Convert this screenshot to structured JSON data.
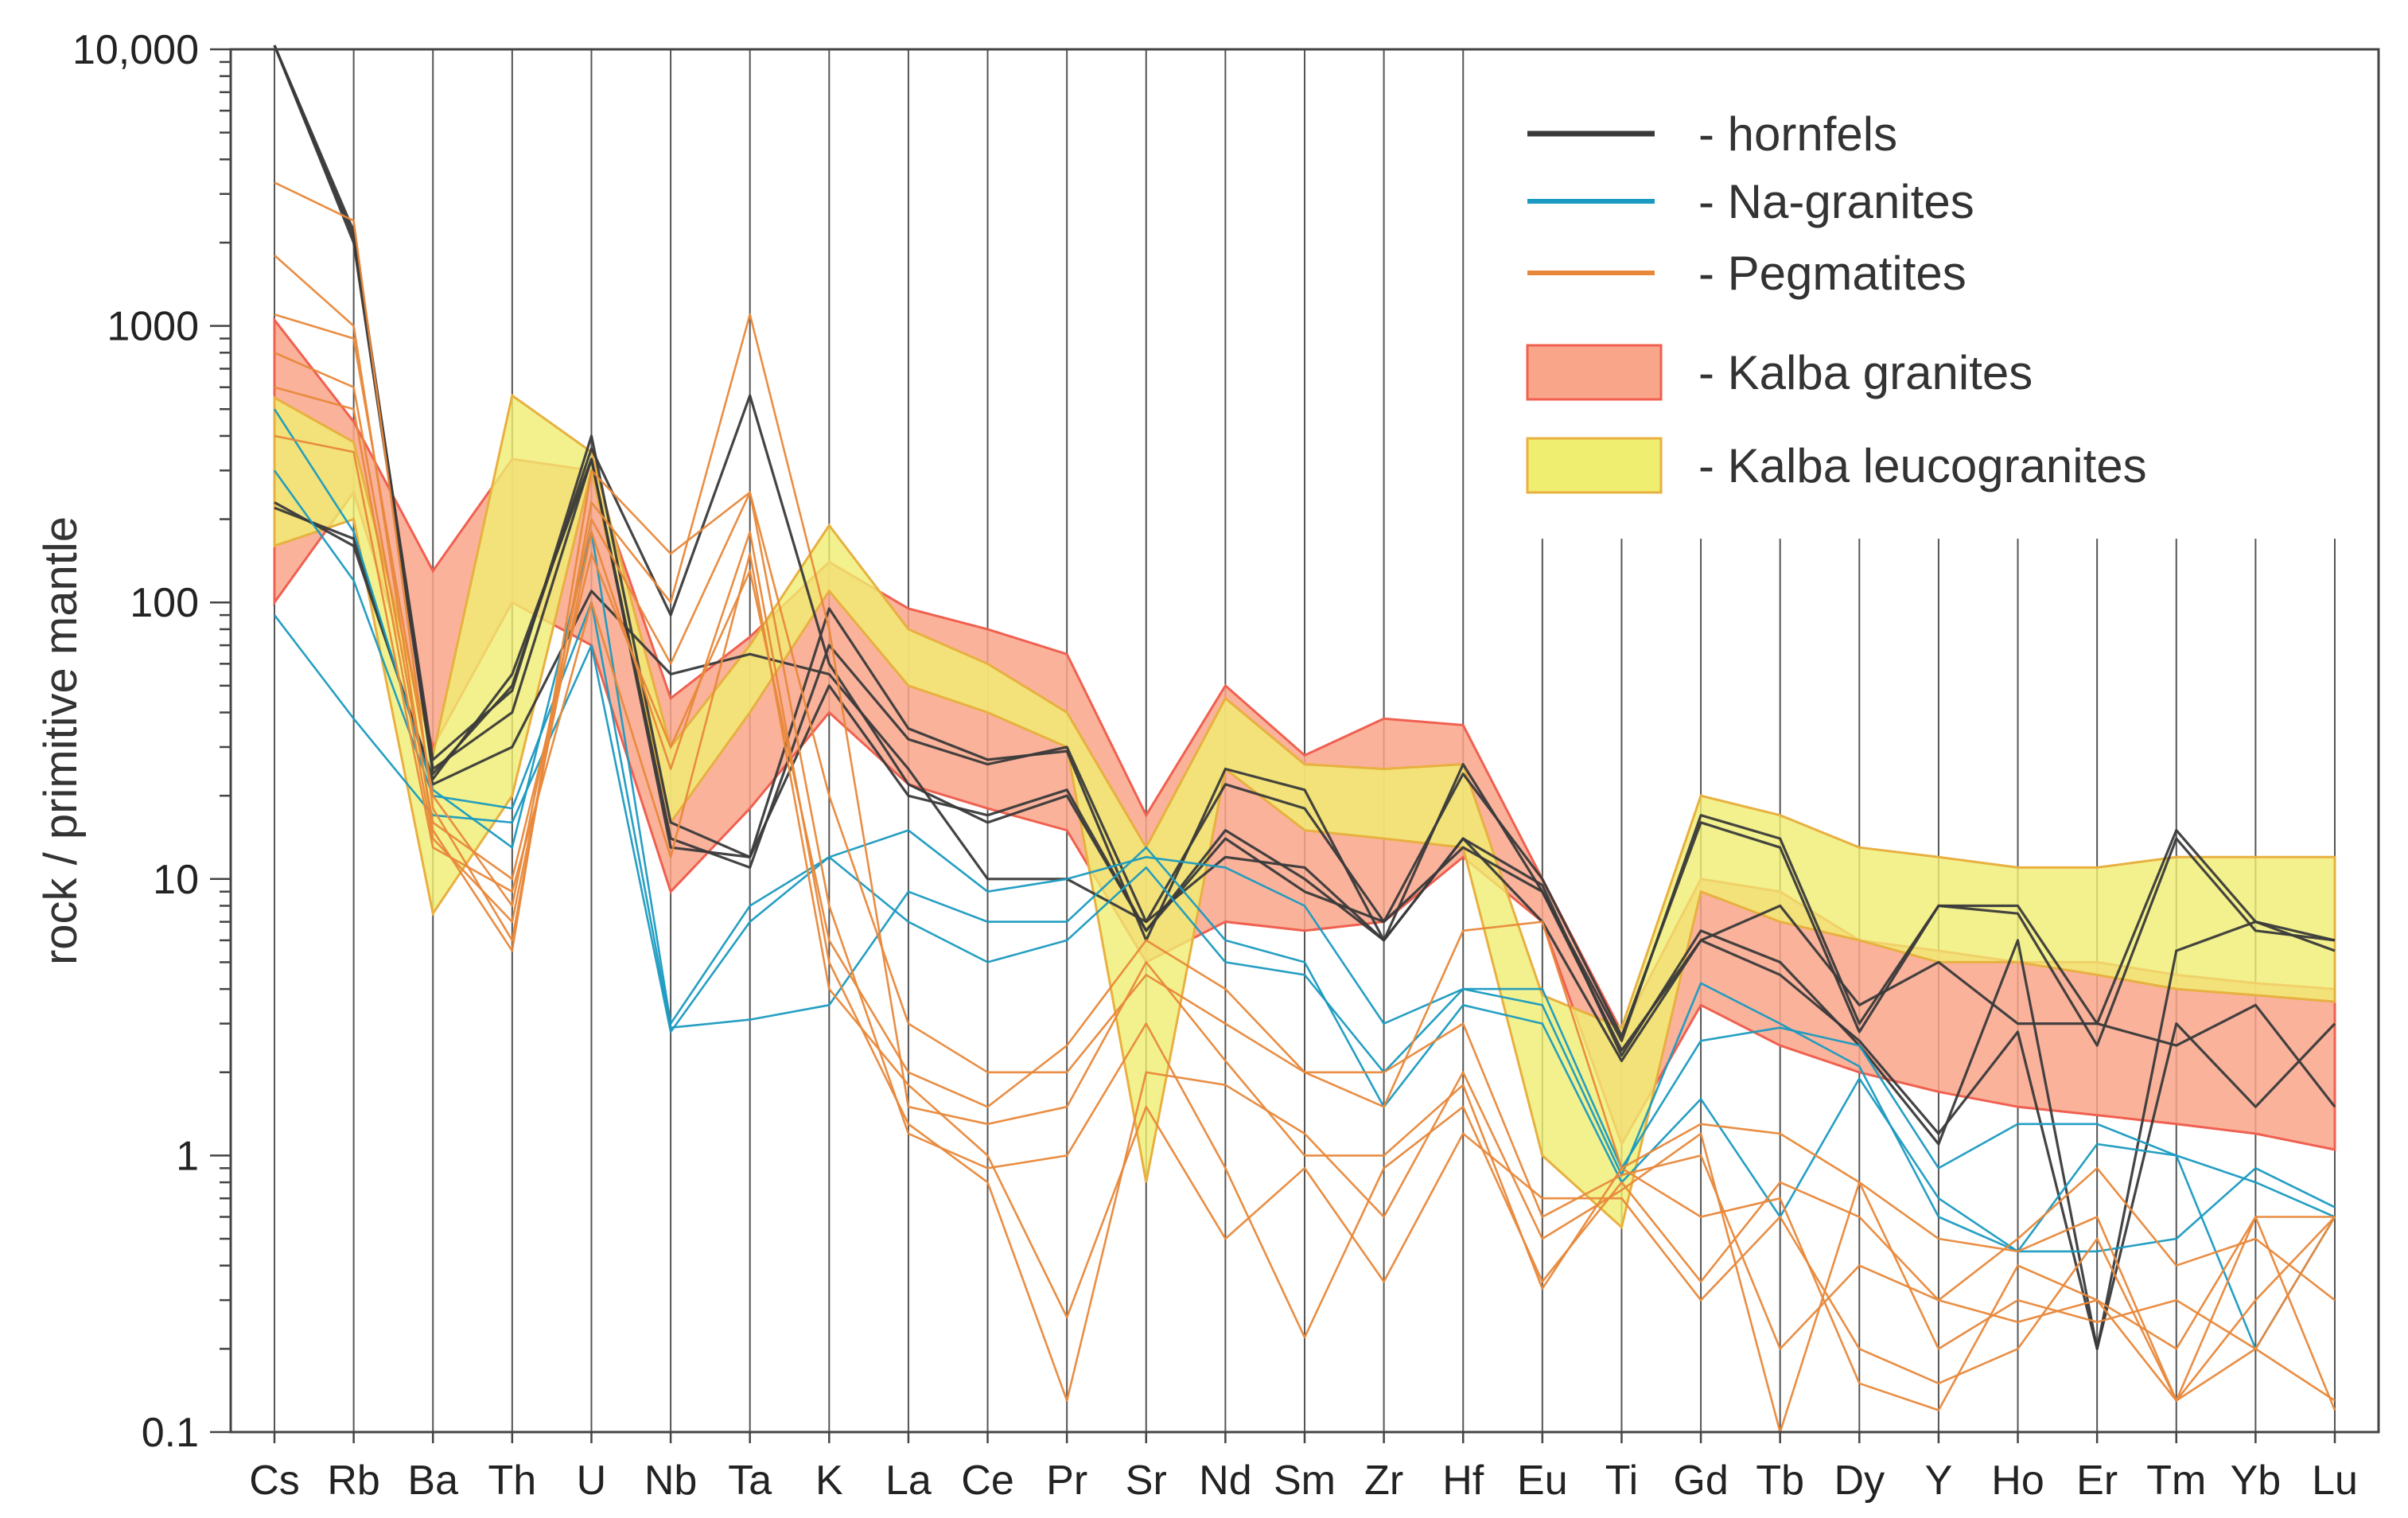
{
  "chart_data": {
    "type": "line",
    "title": "",
    "xlabel": "",
    "ylabel": "rock / primitive mantle",
    "yscale": "log",
    "ylim": [
      0.1,
      10000
    ],
    "y_tick_labels": [
      "0.1",
      "1",
      "10",
      "100",
      "1000",
      "10,000"
    ],
    "y_tick_values": [
      0.1,
      1,
      10,
      100,
      1000,
      10000
    ],
    "grid": "vertical lines at each element",
    "legend_position": "top-right",
    "categories": [
      "Cs",
      "Rb",
      "Ba",
      "Th",
      "U",
      "Nb",
      "Ta",
      "K",
      "La",
      "Ce",
      "Pr",
      "Sr",
      "Nd",
      "Sm",
      "Zr",
      "Hf",
      "Eu",
      "Ti",
      "Gd",
      "Tb",
      "Dy",
      "Y",
      "Ho",
      "Er",
      "Tm",
      "Yb",
      "Lu"
    ],
    "legend": [
      {
        "label": "- hornfels",
        "symbol": "line",
        "color": "#3a3a3a"
      },
      {
        "label": "- Na-granites",
        "symbol": "line",
        "color": "#1a9ac0"
      },
      {
        "label": "- Pegmatites",
        "symbol": "line",
        "color": "#e8883a"
      },
      {
        "label": "- Kalba granites",
        "symbol": "band",
        "color": "#f9a58a",
        "stroke": "#f06050"
      },
      {
        "label": "- Kalba leucogranites",
        "symbol": "band",
        "color": "#f0ee70",
        "stroke": "#e8b040"
      }
    ],
    "bands": [
      {
        "name": "Kalba granites",
        "color": "#f9a58a",
        "stroke": "#f06050",
        "upper": [
          1050,
          450,
          130,
          330,
          300,
          45,
          75,
          140,
          95,
          80,
          65,
          17,
          50,
          28,
          38,
          36,
          10,
          2.8,
          10,
          9,
          6,
          5.5,
          5,
          5,
          4.5,
          4.2,
          4
        ],
        "lower": [
          100,
          250,
          30,
          100,
          70,
          9,
          18,
          40,
          22,
          18,
          15,
          5,
          7,
          6.5,
          7,
          12,
          7,
          1.1,
          3.5,
          2.5,
          2,
          1.7,
          1.5,
          1.4,
          1.3,
          1.2,
          1.05
        ]
      },
      {
        "name": "Kalba leucogranites",
        "color": "#f0ee70",
        "stroke": "#e8b040",
        "upper": [
          550,
          380,
          28,
          560,
          350,
          30,
          70,
          190,
          80,
          60,
          40,
          13,
          45,
          26,
          25,
          26,
          3.8,
          2.9,
          20,
          17,
          13,
          12,
          11,
          11,
          12,
          12,
          12
        ],
        "lower": [
          160,
          200,
          7.5,
          20,
          300,
          16,
          40,
          110,
          50,
          40,
          30,
          0.8,
          25,
          15,
          14,
          13,
          1.0,
          0.55,
          9,
          7,
          6,
          5,
          5,
          4.5,
          4,
          3.8,
          3.6
        ]
      }
    ],
    "series": [
      {
        "group": "hornfels",
        "color": "#3a3a3a",
        "values": [
          12000,
          2100,
          27,
          48,
          400,
          16,
          12,
          95,
          35,
          27,
          29,
          6,
          25,
          21,
          6,
          26,
          9,
          2.6,
          17,
          14,
          3,
          8,
          8,
          3,
          15,
          7,
          6
        ]
      },
      {
        "group": "hornfels",
        "color": "#3a3a3a",
        "values": [
          11500,
          2200,
          25,
          40,
          330,
          14,
          11,
          70,
          32,
          26,
          30,
          7,
          22,
          18,
          7,
          24,
          10,
          2.7,
          16,
          13,
          2.8,
          8,
          7.5,
          2.5,
          14,
          6.5,
          6
        ]
      },
      {
        "group": "hornfels",
        "color": "#3a3a3a",
        "values": [
          10500,
          2000,
          24,
          50,
          360,
          90,
          560,
          60,
          22,
          16,
          20,
          6.5,
          15,
          10,
          6,
          14,
          9.5,
          2.3,
          6.5,
          5,
          2.5,
          1.1,
          6,
          0.2,
          5.5,
          7,
          5.5
        ]
      },
      {
        "group": "hornfels",
        "color": "#3a3a3a",
        "values": [
          230,
          160,
          23,
          55,
          330,
          13,
          12,
          50,
          20,
          17,
          21,
          6.5,
          14,
          9,
          7,
          13,
          9,
          2.4,
          6,
          4.5,
          2.6,
          1.2,
          2.8,
          0.2,
          3,
          1.5,
          3
        ]
      },
      {
        "group": "hornfels",
        "color": "#3a3a3a",
        "values": [
          220,
          170,
          22,
          30,
          110,
          55,
          65,
          55,
          25,
          10,
          10,
          7,
          12,
          11,
          6,
          14,
          7,
          2.2,
          6,
          8,
          3.5,
          5,
          3,
          3,
          2.5,
          3.5,
          1.5
        ]
      },
      {
        "group": "Na-granites",
        "color": "#1a9ac0",
        "values": [
          500,
          180,
          21,
          13,
          180,
          3,
          8,
          12,
          15,
          9,
          10,
          12,
          11,
          8,
          3,
          4,
          4,
          0.9,
          2.6,
          2.9,
          2.5,
          0.9,
          1.3,
          1.3,
          1,
          0.2,
          0.6
        ]
      },
      {
        "group": "Na-granites",
        "color": "#1a9ac0",
        "values": [
          300,
          120,
          20,
          18,
          100,
          2.9,
          3.1,
          3.5,
          9,
          7,
          7,
          13,
          6,
          5,
          1.5,
          3.5,
          3,
          0.8,
          1.6,
          0.6,
          1.9,
          0.7,
          0.45,
          0.45,
          0.5,
          0.9,
          0.65
        ]
      },
      {
        "group": "Na-granites",
        "color": "#1a9ac0",
        "values": [
          90,
          38,
          17,
          16,
          70,
          2.8,
          7,
          12,
          7,
          5,
          6,
          11,
          5,
          4.5,
          2,
          4,
          3.5,
          0.85,
          4.2,
          3,
          2.1,
          0.6,
          0.45,
          1.1,
          1,
          0.8,
          0.6
        ]
      },
      {
        "group": "Pegmatites",
        "color": "#e8883a",
        "values": [
          3300,
          2400,
          18,
          6,
          230,
          100,
          1100,
          80,
          1.5,
          1.3,
          1.5,
          5,
          2.2,
          1,
          1,
          1.8,
          0.33,
          0.9,
          1.3,
          1.2,
          0.8,
          0.5,
          0.45,
          0.6,
          0.13,
          0.6,
          0.6
        ]
      },
      {
        "group": "Pegmatites",
        "color": "#e8883a",
        "values": [
          1800,
          1000,
          15,
          5.5,
          300,
          150,
          250,
          20,
          3,
          2,
          2,
          4.5,
          3,
          2,
          2,
          3,
          0.6,
          0.85,
          1,
          0.2,
          0.4,
          0.3,
          0.25,
          0.3,
          0.13,
          0.2,
          0.13
        ]
      },
      {
        "group": "Pegmatites",
        "color": "#e8883a",
        "values": [
          1100,
          900,
          20,
          8,
          200,
          60,
          250,
          8,
          1.2,
          0.9,
          1.0,
          3,
          0.9,
          0.22,
          0.9,
          1.5,
          0.35,
          0.8,
          0.35,
          0.8,
          0.6,
          0.3,
          0.5,
          0.9,
          0.4,
          0.5,
          0.3
        ]
      },
      {
        "group": "Pegmatites",
        "color": "#e8883a",
        "values": [
          800,
          600,
          16,
          10,
          150,
          30,
          130,
          6,
          2,
          1.5,
          2.5,
          6,
          4,
          2,
          1.5,
          6.5,
          7,
          0.9,
          0.6,
          0.7,
          0.15,
          0.12,
          0.4,
          0.3,
          0.2,
          0.6,
          0.12
        ]
      },
      {
        "group": "Pegmatites",
        "color": "#e8883a",
        "values": [
          600,
          500,
          14,
          7,
          180,
          25,
          180,
          5,
          1.3,
          0.8,
          0.13,
          2,
          1.8,
          1.2,
          0.6,
          2,
          0.5,
          0.75,
          1.2,
          0.09,
          0.8,
          0.2,
          0.3,
          0.25,
          0.3,
          0.2,
          0.6
        ]
      },
      {
        "group": "Pegmatites",
        "color": "#e8883a",
        "values": [
          400,
          350,
          13,
          9,
          100,
          12,
          150,
          4,
          1.8,
          1.0,
          0.26,
          1.5,
          0.5,
          0.9,
          0.35,
          1.2,
          0.7,
          0.7,
          0.3,
          0.6,
          0.2,
          0.15,
          0.2,
          0.5,
          0.13,
          0.3,
          0.6
        ]
      }
    ]
  }
}
